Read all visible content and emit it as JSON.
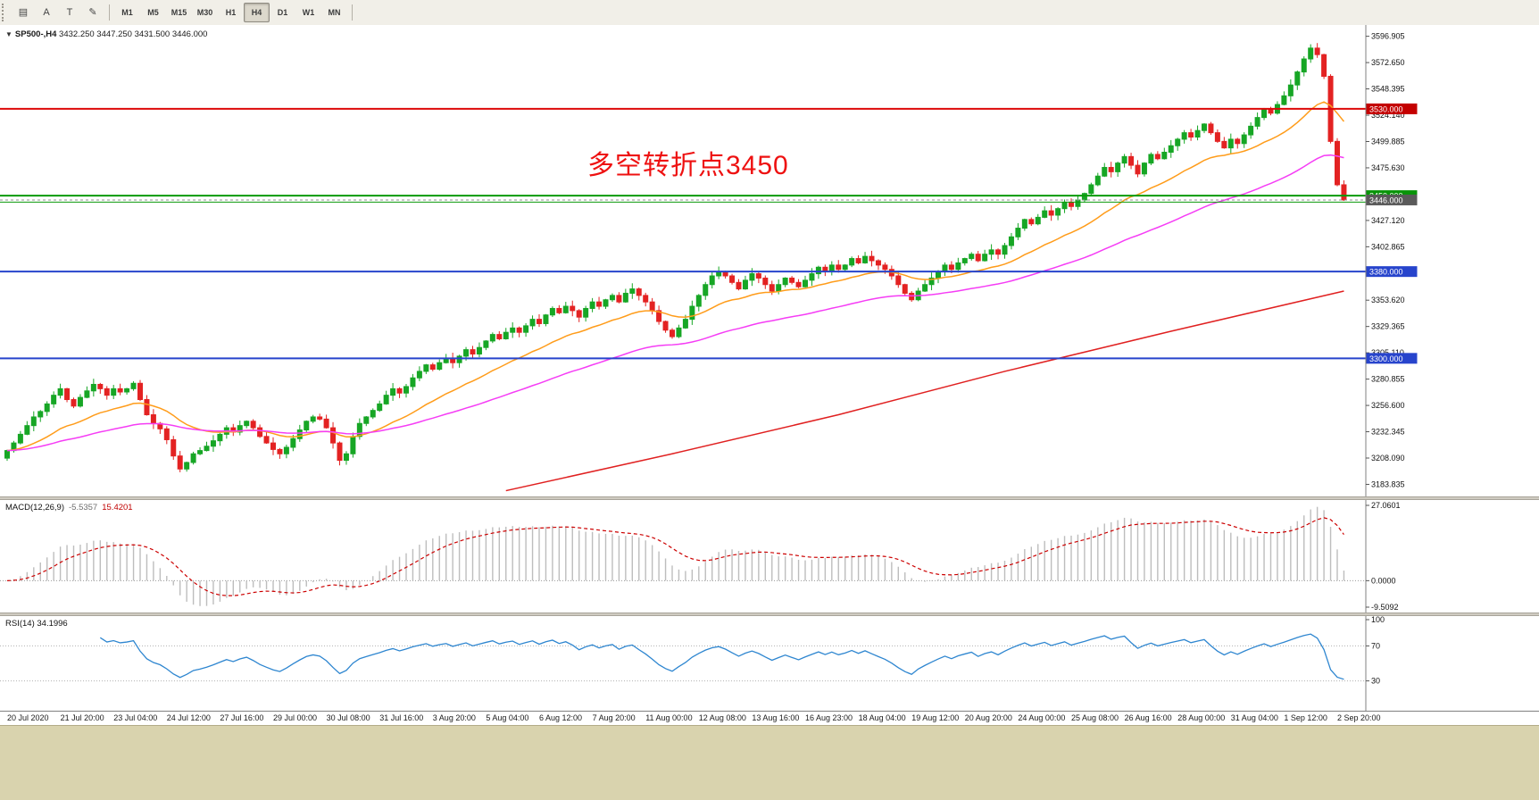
{
  "toolbar": {
    "tools": [
      {
        "name": "charts-icon",
        "glyph": "▤"
      },
      {
        "name": "font-icon",
        "glyph": "A"
      },
      {
        "name": "text-icon",
        "glyph": "T"
      },
      {
        "name": "draw-icon",
        "glyph": "✎"
      }
    ],
    "timeframes": [
      {
        "label": "M1"
      },
      {
        "label": "M5"
      },
      {
        "label": "M15"
      },
      {
        "label": "M30"
      },
      {
        "label": "H1"
      },
      {
        "label": "H4"
      },
      {
        "label": "D1"
      },
      {
        "label": "W1"
      },
      {
        "label": "MN"
      }
    ],
    "active_timeframe": "H4"
  },
  "chart": {
    "collapse_glyph": "▼",
    "symbol_title": "SP500-,H4",
    "ohlc_text": "3432.250 3447.250 3431.500 3446.000",
    "annotation": {
      "text": "多空转折点3450",
      "color": "#ee1111"
    }
  },
  "indicators": {
    "macd": {
      "name": "MACD(12,26,9)",
      "main_value": "-5.5357",
      "signal_value": "15.4201"
    },
    "rsi": {
      "name": "RSI(14)",
      "value": "34.1996"
    }
  },
  "chart_data": {
    "type": "candlestick",
    "symbol": "SP500-",
    "timeframe": "H4",
    "current_ohlc": {
      "open": 3432.25,
      "high": 3447.25,
      "low": 3431.5,
      "close": 3446.0
    },
    "first_open": 3208,
    "closes": [
      3215,
      3222,
      3230,
      3238,
      3246,
      3251,
      3258,
      3266,
      3272,
      3262,
      3256,
      3264,
      3270,
      3276,
      3272,
      3266,
      3272,
      3269,
      3272,
      3277,
      3262,
      3248,
      3240,
      3235,
      3225,
      3210,
      3198,
      3204,
      3212,
      3215,
      3219,
      3224,
      3230,
      3236,
      3232,
      3238,
      3242,
      3236,
      3228,
      3222,
      3216,
      3212,
      3218,
      3226,
      3234,
      3242,
      3246,
      3244,
      3236,
      3222,
      3206,
      3212,
      3228,
      3240,
      3246,
      3252,
      3258,
      3266,
      3272,
      3268,
      3274,
      3282,
      3288,
      3294,
      3290,
      3296,
      3300,
      3296,
      3302,
      3308,
      3304,
      3310,
      3316,
      3322,
      3318,
      3324,
      3328,
      3324,
      3330,
      3336,
      3332,
      3340,
      3346,
      3342,
      3348,
      3344,
      3338,
      3346,
      3352,
      3348,
      3354,
      3358,
      3352,
      3360,
      3364,
      3358,
      3352,
      3344,
      3334,
      3326,
      3320,
      3328,
      3336,
      3348,
      3358,
      3368,
      3376,
      3380,
      3376,
      3370,
      3364,
      3372,
      3378,
      3374,
      3368,
      3362,
      3368,
      3374,
      3370,
      3366,
      3372,
      3378,
      3384,
      3380,
      3386,
      3382,
      3386,
      3392,
      3388,
      3394,
      3390,
      3386,
      3382,
      3376,
      3368,
      3360,
      3354,
      3362,
      3368,
      3374,
      3380,
      3386,
      3382,
      3388,
      3392,
      3396,
      3390,
      3396,
      3400,
      3396,
      3404,
      3412,
      3420,
      3428,
      3424,
      3430,
      3436,
      3432,
      3438,
      3444,
      3440,
      3446,
      3452,
      3460,
      3468,
      3476,
      3472,
      3480,
      3486,
      3478,
      3470,
      3480,
      3488,
      3484,
      3490,
      3496,
      3502,
      3508,
      3504,
      3510,
      3516,
      3508,
      3500,
      3494,
      3502,
      3498,
      3506,
      3514,
      3522,
      3530,
      3526,
      3534,
      3542,
      3552,
      3564,
      3576,
      3586,
      3580,
      3560,
      3500,
      3460,
      3446
    ],
    "y_axis_range": [
      3176,
      3604
    ],
    "y_ticks": [
      {
        "price": 3596.905,
        "label": "3596.905"
      },
      {
        "price": 3572.65,
        "label": "3572.650"
      },
      {
        "price": 3548.395,
        "label": "3548.395"
      },
      {
        "price": 3524.14,
        "label": "3524.140"
      },
      {
        "price": 3499.885,
        "label": "3499.885"
      },
      {
        "price": 3475.63,
        "label": "3475.630"
      },
      {
        "price": 3427.12,
        "label": "3427.120"
      },
      {
        "price": 3402.865,
        "label": "3402.865"
      },
      {
        "price": 3353.62,
        "label": "3353.620"
      },
      {
        "price": 3329.365,
        "label": "3329.365"
      },
      {
        "price": 3305.11,
        "label": "3305.110"
      },
      {
        "price": 3280.855,
        "label": "3280.855"
      },
      {
        "price": 3256.6,
        "label": "3256.600"
      },
      {
        "price": 3232.345,
        "label": "3232.345"
      },
      {
        "price": 3208.09,
        "label": "3208.090"
      },
      {
        "price": 3183.835,
        "label": "3183.835"
      }
    ],
    "hlines": [
      {
        "price": 3530,
        "color": "#dd0808",
        "width": 2
      },
      {
        "price": 3450,
        "color": "#0a9a0a",
        "width": 2
      },
      {
        "price": 3444,
        "color": "#0a9a0a",
        "width": 1
      },
      {
        "price": 3380,
        "color": "#2744cc",
        "width": 2
      },
      {
        "price": 3300,
        "color": "#2744cc",
        "width": 2
      }
    ],
    "current_price_line": {
      "price": 3446,
      "color": "#909090",
      "dash": "3,3"
    },
    "price_badges": [
      {
        "label": "3530.000",
        "price": 3530,
        "color": "#c40000"
      },
      {
        "label": "3450.000",
        "price": 3450,
        "color": "#089408"
      },
      {
        "label": "3446.000",
        "price": 3446,
        "color": "#5a5a5a"
      },
      {
        "label": "3380.000",
        "price": 3380,
        "color": "#2744cc"
      },
      {
        "label": "3300.000",
        "price": 3300,
        "color": "#2744cc"
      }
    ],
    "moving_averages": [
      {
        "name": "ma-fast",
        "type": "ema",
        "period": 20,
        "color": "#ff9c1a"
      },
      {
        "name": "ma-mid",
        "type": "ema",
        "period": 55,
        "color": "#f53df5"
      },
      {
        "name": "ma-slow",
        "type": "anchors",
        "color": "#e02020",
        "points": [
          [
            75,
            3178
          ],
          [
            100,
            3212
          ],
          [
            125,
            3248
          ],
          [
            150,
            3288
          ],
          [
            175,
            3325
          ],
          [
            201,
            3362
          ]
        ]
      }
    ],
    "candle_colors": {
      "up": "#17a625",
      "down": "#e32222"
    },
    "macd": {
      "fast": 12,
      "slow": 26,
      "signal": 9,
      "range": [
        -9.5092,
        27.0601
      ],
      "axis_labels": [
        {
          "value": 27.0601,
          "label": "27.0601"
        },
        {
          "value": 0,
          "label": "0.0000"
        },
        {
          "value": -9.5092,
          "label": "-9.5092"
        }
      ],
      "histogram_color": "#bdbdbd",
      "signal_color": "#cc0000"
    },
    "rsi": {
      "period": 14,
      "range": [
        0,
        100
      ],
      "levels": [
        70,
        30
      ],
      "axis_labels": [
        {
          "value": 100,
          "label": "100"
        },
        {
          "value": 70,
          "label": "70"
        },
        {
          "value": 30,
          "label": "30"
        }
      ],
      "color": "#2e86d0"
    },
    "time_labels": [
      "20 Jul 2020",
      "21 Jul 20:00",
      "23 Jul 04:00",
      "24 Jul 12:00",
      "27 Jul 16:00",
      "29 Jul 00:00",
      "30 Jul 08:00",
      "31 Jul 16:00",
      "3 Aug 20:00",
      "5 Aug 04:00",
      "6 Aug 12:00",
      "7 Aug 20:00",
      "11 Aug 00:00",
      "12 Aug 08:00",
      "13 Aug 16:00",
      "16 Aug 23:00",
      "18 Aug 04:00",
      "19 Aug 12:00",
      "20 Aug 20:00",
      "24 Aug 00:00",
      "25 Aug 08:00",
      "26 Aug 16:00",
      "28 Aug 00:00",
      "31 Aug 04:00",
      "1 Sep 12:00",
      "2 Sep 20:00"
    ]
  }
}
